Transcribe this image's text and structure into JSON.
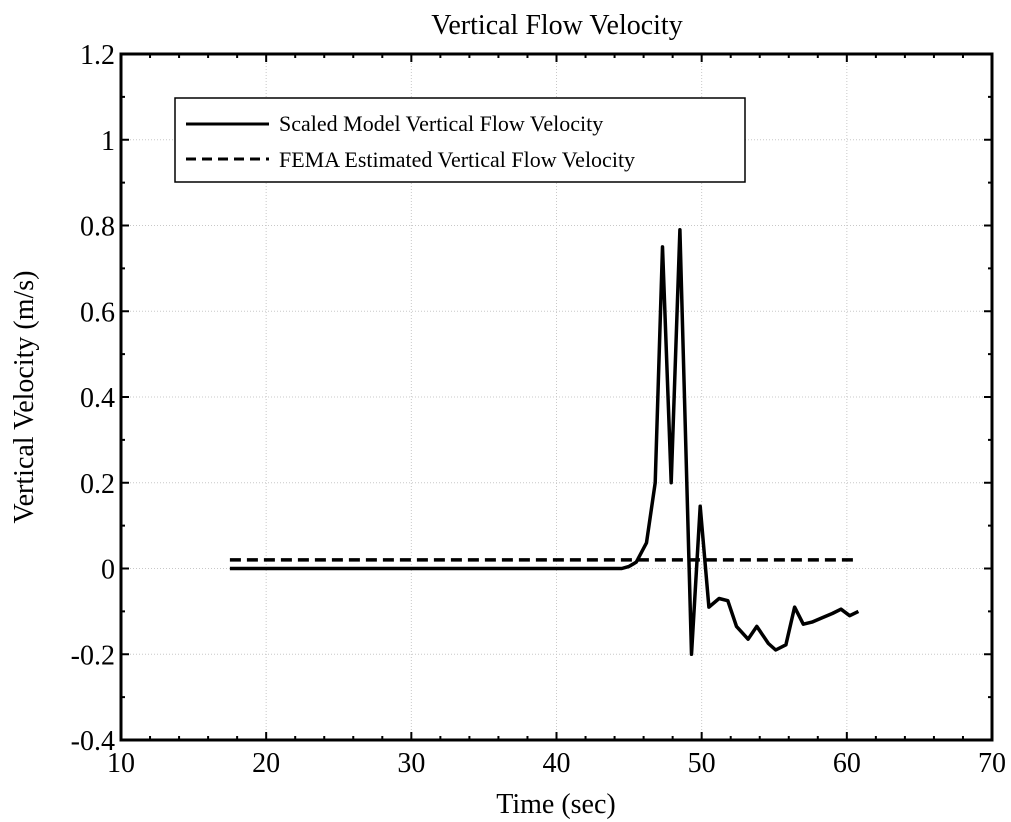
{
  "chart_data": {
    "type": "line",
    "title": "Vertical Flow Velocity",
    "xlabel": "Time (sec)",
    "ylabel": "Vertical Velocity (m/s)",
    "xlim": [
      10,
      70
    ],
    "ylim": [
      -0.4,
      1.2
    ],
    "xticks": [
      10,
      20,
      30,
      40,
      50,
      60,
      70
    ],
    "yticks": [
      -0.4,
      -0.2,
      0,
      0.2,
      0.4,
      0.6,
      0.8,
      1,
      1.2
    ],
    "xtick_labels": [
      "10",
      "20",
      "30",
      "40",
      "50",
      "60",
      "70"
    ],
    "ytick_labels": [
      "-0.4",
      "-0.2",
      "0",
      "0.2",
      "0.4",
      "0.6",
      "0.8",
      "1",
      "1.2"
    ],
    "grid": true,
    "legend_position": "top-left",
    "series": [
      {
        "name": "Scaled Model Vertical Flow Velocity",
        "style": "solid",
        "color": "#000000",
        "x": [
          17.5,
          44.5,
          45.0,
          45.5,
          46.2,
          46.8,
          47.3,
          47.9,
          48.5,
          49.3,
          49.9,
          50.5,
          51.2,
          51.8,
          52.4,
          53.2,
          53.8,
          54.6,
          55.1,
          55.8,
          56.4,
          57.0,
          57.6,
          58.3,
          59.0,
          59.6,
          60.2,
          60.8
        ],
        "y": [
          0.0,
          0.0,
          0.005,
          0.015,
          0.06,
          0.2,
          0.75,
          0.2,
          0.79,
          -0.2,
          0.145,
          -0.09,
          -0.07,
          -0.075,
          -0.135,
          -0.165,
          -0.135,
          -0.175,
          -0.19,
          -0.178,
          -0.09,
          -0.13,
          -0.125,
          -0.115,
          -0.105,
          -0.095,
          -0.11,
          -0.1
        ]
      },
      {
        "name": "FEMA Estimated Vertical Flow Velocity",
        "style": "dashed",
        "color": "#000000",
        "x": [
          17.5,
          60.8
        ],
        "y": [
          0.02,
          0.02
        ]
      }
    ]
  }
}
